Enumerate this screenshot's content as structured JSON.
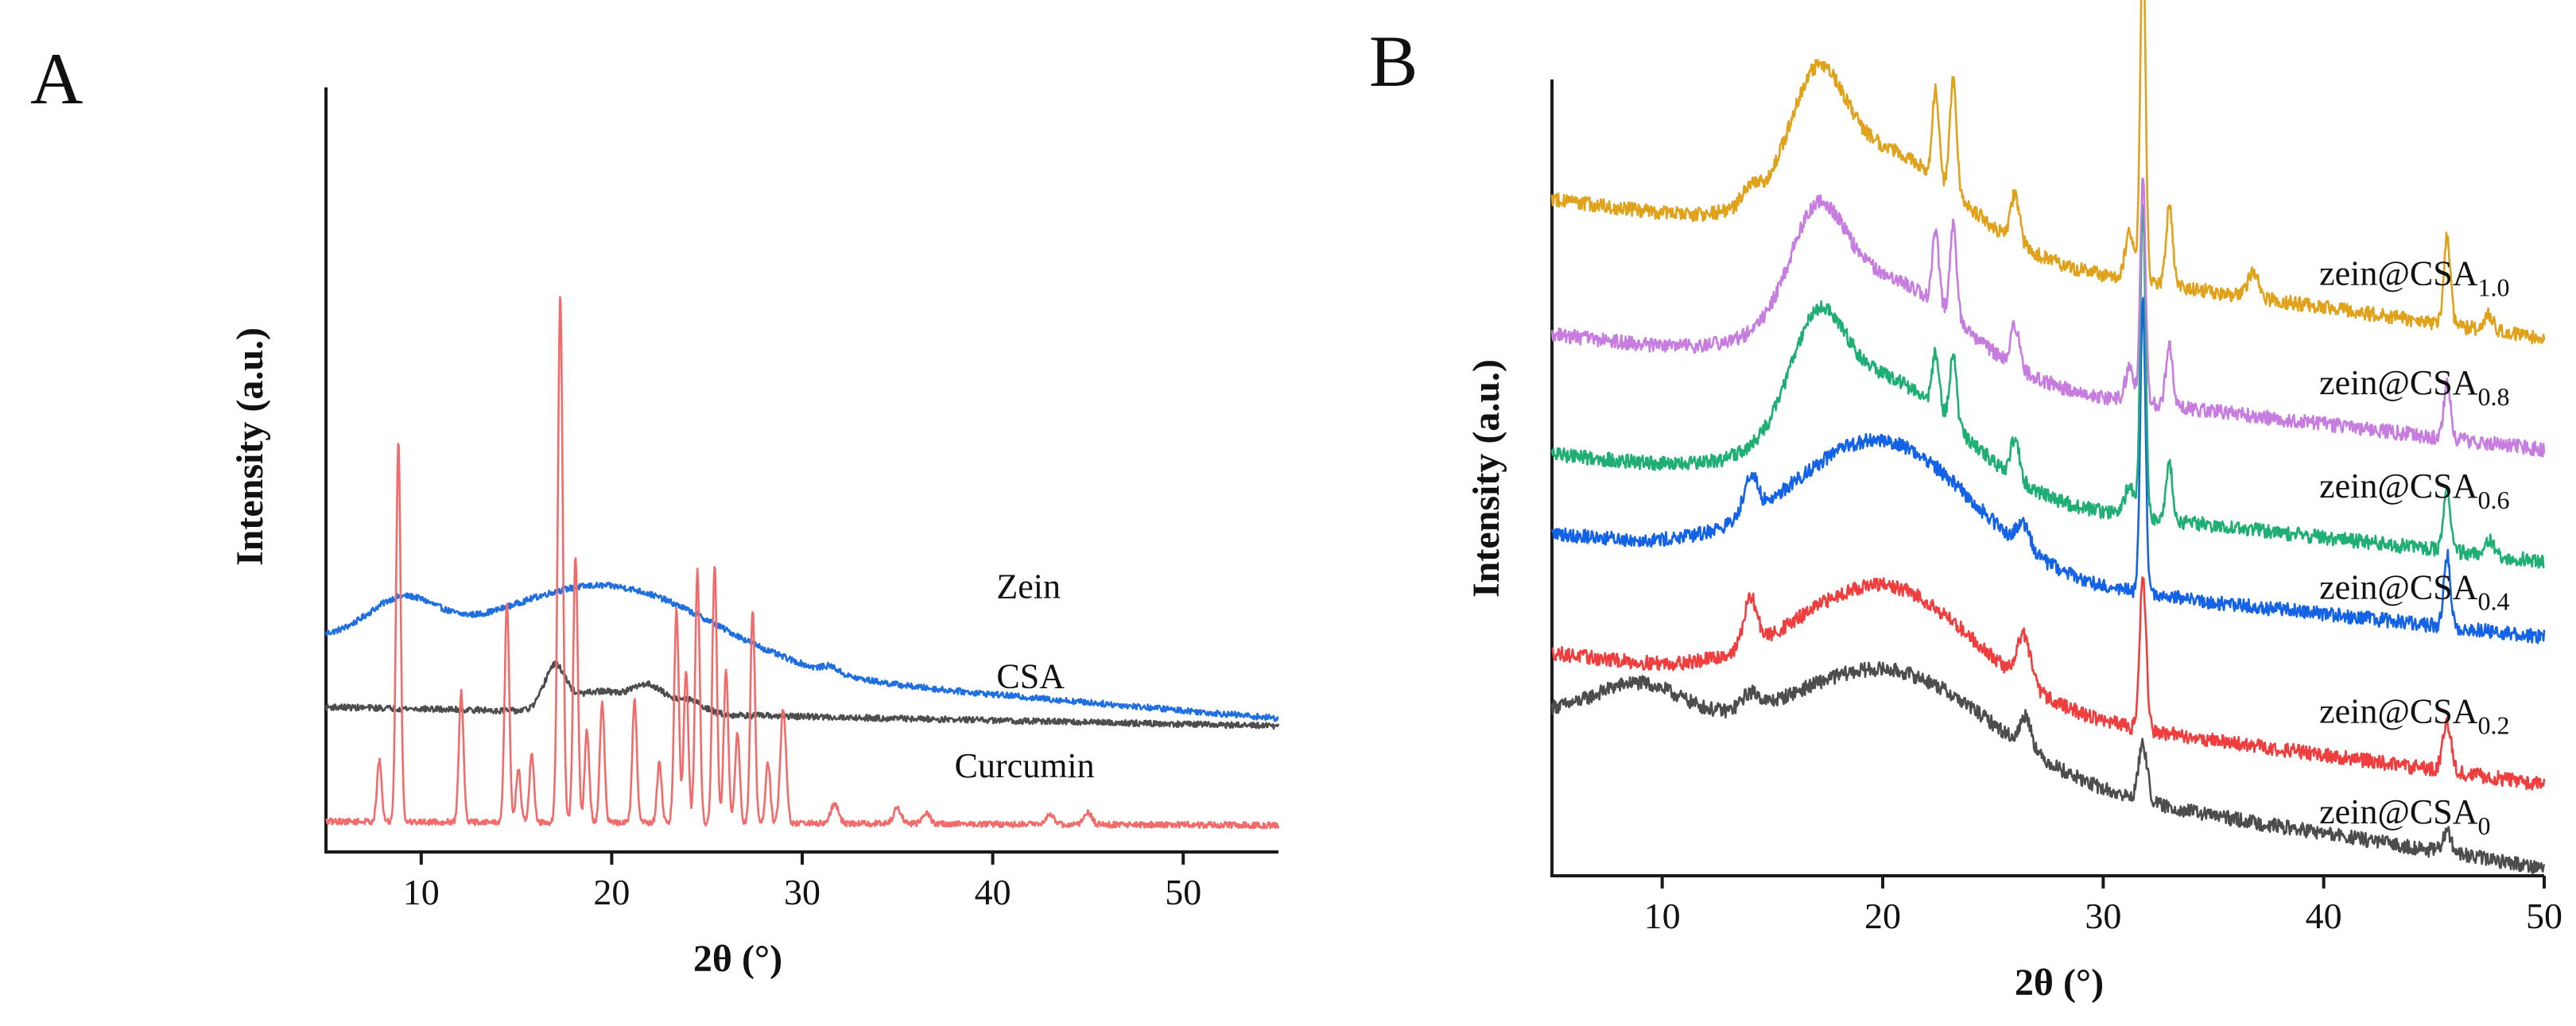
{
  "chart_data": [
    {
      "panel": "A",
      "type": "line",
      "title": "",
      "xlabel": "2θ (°)",
      "ylabel": "Intensity (a.u.)",
      "xlim": [
        5,
        55
      ],
      "xticks": [
        10,
        20,
        30,
        40,
        50
      ],
      "ylim": [
        0,
        1
      ],
      "y_ticks_shown": false,
      "grid": false,
      "series": [
        {
          "name": "Zein",
          "color": "#1f6fe0",
          "baseline": 0.28,
          "baseline_end": 0.175,
          "noise": 0.004,
          "peaks": [
            [
              9,
              0.05,
              1.8
            ],
            [
              20,
              0.1,
              5.5
            ],
            [
              31.5,
              0.008,
              0.4
            ]
          ]
        },
        {
          "name": "CSA",
          "color": "#4d4d4d",
          "baseline": 0.19,
          "baseline_end": 0.165,
          "noise": 0.004,
          "peaks": [
            [
              17,
              0.055,
              0.55
            ],
            [
              18.8,
              0.02,
              1.2
            ],
            [
              20.5,
              0.015,
              1.2
            ],
            [
              22,
              0.03,
              0.8
            ],
            [
              24,
              0.018,
              0.8
            ]
          ]
        },
        {
          "name": "Curcumin",
          "color": "#f26b6b",
          "baseline": 0.04,
          "baseline_end": 0.035,
          "noise": 0.004,
          "peaks": [
            [
              7.8,
              0.08,
              0.12
            ],
            [
              8.8,
              0.5,
              0.12
            ],
            [
              12.1,
              0.17,
              0.12
            ],
            [
              14.5,
              0.29,
              0.12
            ],
            [
              15.1,
              0.07,
              0.12
            ],
            [
              15.8,
              0.09,
              0.12
            ],
            [
              17.3,
              0.69,
              0.13
            ],
            [
              18.1,
              0.35,
              0.12
            ],
            [
              18.7,
              0.12,
              0.12
            ],
            [
              19.5,
              0.16,
              0.12
            ],
            [
              21.2,
              0.16,
              0.12
            ],
            [
              22.5,
              0.08,
              0.12
            ],
            [
              23.4,
              0.28,
              0.12
            ],
            [
              23.9,
              0.2,
              0.12
            ],
            [
              24.5,
              0.33,
              0.12
            ],
            [
              25.4,
              0.34,
              0.12
            ],
            [
              26,
              0.2,
              0.12
            ],
            [
              26.6,
              0.12,
              0.12
            ],
            [
              27.4,
              0.28,
              0.12
            ],
            [
              28.2,
              0.08,
              0.12
            ],
            [
              29,
              0.15,
              0.15
            ],
            [
              31.7,
              0.025,
              0.2
            ],
            [
              35,
              0.02,
              0.2
            ],
            [
              36.5,
              0.015,
              0.2
            ],
            [
              43,
              0.015,
              0.2
            ],
            [
              45,
              0.015,
              0.2
            ]
          ]
        }
      ],
      "labels": [
        {
          "text": "Zein",
          "x": 40.2,
          "y": 0.333
        },
        {
          "text": "CSA",
          "x": 40.2,
          "y": 0.215
        },
        {
          "text": "Curcumin",
          "x": 38,
          "y": 0.098
        }
      ]
    },
    {
      "panel": "B",
      "type": "line",
      "title": "",
      "xlabel": "2θ (°)",
      "ylabel": "Intensity (a.u.)",
      "xlim": [
        5,
        50
      ],
      "xticks": [
        10,
        20,
        30,
        40,
        50
      ],
      "ylim": [
        0,
        1
      ],
      "y_ticks_shown": false,
      "grid": false,
      "series": [
        {
          "name": "zein@CSA0",
          "color": "#4d4d4d",
          "baseline": 0.205,
          "baseline_end": 0.01,
          "noise": 0.009,
          "peaks": [
            [
              9,
              0.05,
              2
            ],
            [
              14,
              0.02,
              0.4
            ],
            [
              20.5,
              0.12,
              4.5
            ],
            [
              26.5,
              0.04,
              0.25
            ],
            [
              31.8,
              0.07,
              0.2
            ],
            [
              45.6,
              0.025,
              0.2
            ]
          ]
        },
        {
          "name": "zein@CSA0.2",
          "color": "#f03e3e",
          "baseline": 0.28,
          "baseline_end": 0.115,
          "noise": 0.009,
          "peaks": [
            [
              14,
              0.06,
              0.3
            ],
            [
              20.2,
              0.14,
              4
            ],
            [
              26.4,
              0.06,
              0.3
            ],
            [
              31.8,
              0.19,
              0.15
            ],
            [
              45.6,
              0.06,
              0.2
            ]
          ]
        },
        {
          "name": "zein@CSA0.4",
          "color": "#1463e6",
          "baseline": 0.43,
          "baseline_end": 0.3,
          "noise": 0.009,
          "peaks": [
            [
              14,
              0.05,
              0.3
            ],
            [
              20,
              0.16,
              4
            ],
            [
              26.4,
              0.03,
              0.3
            ],
            [
              31.8,
              0.37,
              0.12
            ],
            [
              45.6,
              0.09,
              0.15
            ]
          ]
        },
        {
          "name": "zein@CSA0.6",
          "color": "#1fae73",
          "baseline": 0.53,
          "baseline_end": 0.395,
          "noise": 0.009,
          "peaks": [
            [
              17,
              0.12,
              1.2
            ],
            [
              20,
              0.14,
              3.5
            ],
            [
              22.4,
              0.07,
              0.15
            ],
            [
              23.2,
              0.09,
              0.15
            ],
            [
              26,
              0.05,
              0.2
            ],
            [
              31.2,
              0.04,
              0.2
            ],
            [
              31.8,
              0.4,
              0.12
            ],
            [
              33,
              0.07,
              0.15
            ],
            [
              45.6,
              0.08,
              0.15
            ],
            [
              47.5,
              0.02,
              0.2
            ]
          ]
        },
        {
          "name": "zein@CSA0.8",
          "color": "#c77de0",
          "baseline": 0.68,
          "baseline_end": 0.535,
          "noise": 0.009,
          "peaks": [
            [
              17,
              0.12,
              1.2
            ],
            [
              20,
              0.12,
              3.5
            ],
            [
              22.4,
              0.09,
              0.15
            ],
            [
              23.2,
              0.12,
              0.15
            ],
            [
              26,
              0.05,
              0.2
            ],
            [
              31.2,
              0.04,
              0.2
            ],
            [
              31.8,
              0.28,
              0.12
            ],
            [
              33,
              0.08,
              0.15
            ],
            [
              45.6,
              0.07,
              0.15
            ]
          ]
        },
        {
          "name": "zein@CSA1.0",
          "color": "#e0a11b",
          "baseline": 0.85,
          "baseline_end": 0.675,
          "noise": 0.009,
          "peaks": [
            [
              14,
              0.02,
              0.4
            ],
            [
              17,
              0.13,
              1.2
            ],
            [
              20,
              0.12,
              3.5
            ],
            [
              22.4,
              0.11,
              0.15
            ],
            [
              23.2,
              0.14,
              0.15
            ],
            [
              26,
              0.06,
              0.2
            ],
            [
              31.2,
              0.06,
              0.2
            ],
            [
              31.8,
              0.44,
              0.12
            ],
            [
              33,
              0.1,
              0.15
            ],
            [
              36.8,
              0.03,
              0.25
            ],
            [
              45.6,
              0.11,
              0.15
            ],
            [
              47.5,
              0.02,
              0.2
            ]
          ]
        }
      ],
      "labels": [
        {
          "base": "zein@CSA",
          "sub": "1.0",
          "x": 39.8,
          "y": 0.742
        },
        {
          "base": "zein@CSA",
          "sub": "0.8",
          "x": 39.8,
          "y": 0.605
        },
        {
          "base": "zein@CSA",
          "sub": "0.6",
          "x": 39.8,
          "y": 0.475
        },
        {
          "base": "zein@CSA",
          "sub": "0.4",
          "x": 39.8,
          "y": 0.348
        },
        {
          "base": "zein@CSA",
          "sub": "0.2",
          "x": 39.8,
          "y": 0.192
        },
        {
          "base": "zein@CSA",
          "sub": "0",
          "x": 39.8,
          "y": 0.066
        }
      ]
    }
  ],
  "panels": {
    "a_letter": "A",
    "b_letter": "B"
  }
}
